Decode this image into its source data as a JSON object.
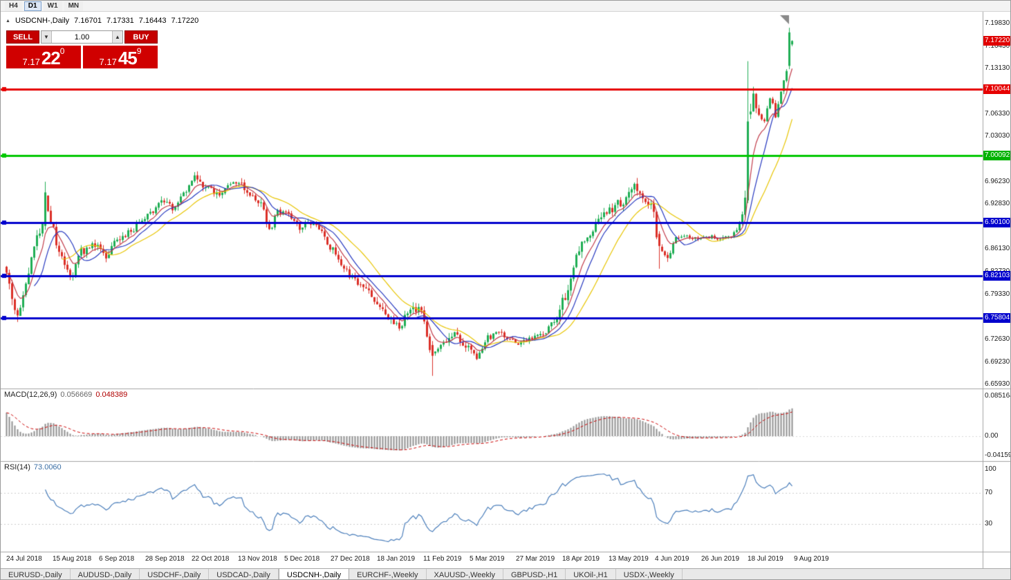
{
  "toolbar": {
    "timeframes": [
      {
        "label": "H4",
        "active": false
      },
      {
        "label": "D1",
        "active": true
      },
      {
        "label": "W1",
        "active": false
      },
      {
        "label": "MN",
        "active": false
      }
    ]
  },
  "chart_header": {
    "collapse_icon": "▲",
    "symbol": "USDCNH-,Daily",
    "open": "7.16701",
    "high": "7.17331",
    "low": "7.16443",
    "close": "7.17220"
  },
  "trade": {
    "sell_label": "SELL",
    "buy_label": "BUY",
    "volume": "1.00",
    "down_icon": "▼",
    "up_icon": "▲",
    "bid_prefix": "7.17",
    "bid_main": "22",
    "bid_pip": "0",
    "ask_prefix": "7.17",
    "ask_main": "45",
    "ask_pip": "9"
  },
  "price_scale": {
    "ticks": [
      "7.19830",
      "7.16430",
      "7.13130",
      "7.06330",
      "7.03030",
      "6.96230",
      "6.92830",
      "6.89530",
      "6.86130",
      "6.82730",
      "6.79330",
      "6.72630",
      "6.69230",
      "6.65930"
    ],
    "badges": [
      {
        "label": "7.17220",
        "color": "#e00000"
      },
      {
        "label": "7.10044",
        "color": "#e60000"
      },
      {
        "label": "7.00092",
        "color": "#00b200"
      },
      {
        "label": "6.90100",
        "color": "#0000cd"
      },
      {
        "label": "6.82103",
        "color": "#0000cd"
      },
      {
        "label": "6.75804",
        "color": "#0000cd"
      }
    ]
  },
  "hlines": [
    {
      "price": 7.10044,
      "color": "#e60000"
    },
    {
      "price": 7.00092,
      "color": "#00c800"
    },
    {
      "price": 6.901,
      "color": "#0000cd"
    },
    {
      "price": 6.82103,
      "color": "#0000cd"
    },
    {
      "price": 6.75804,
      "color": "#0000cd"
    }
  ],
  "macd_panel": {
    "label": "MACD(12,26,9)",
    "value_main": "0.056669",
    "value_signal": "0.048389",
    "scale": [
      "0.085164",
      "0.00",
      "-0.041597"
    ]
  },
  "rsi_panel": {
    "label": "RSI(14)",
    "value": "73.0060",
    "scale": [
      "100",
      "70",
      "30"
    ]
  },
  "date_axis": [
    "24 Jul 2018",
    "15 Aug 2018",
    "6 Sep 2018",
    "28 Sep 2018",
    "22 Oct 2018",
    "13 Nov 2018",
    "5 Dec 2018",
    "27 Dec 2018",
    "18 Jan 2019",
    "11 Feb 2019",
    "5 Mar 2019",
    "27 Mar 2019",
    "18 Apr 2019",
    "13 May 2019",
    "4 Jun 2019",
    "26 Jun 2019",
    "18 Jul 2019",
    "9 Aug 2019"
  ],
  "tabs": [
    {
      "label": "EURUSD-,Daily",
      "active": false
    },
    {
      "label": "AUDUSD-,Daily",
      "active": false
    },
    {
      "label": "USDCHF-,Daily",
      "active": false
    },
    {
      "label": "USDCAD-,Daily",
      "active": false
    },
    {
      "label": "USDCNH-,Daily",
      "active": true
    },
    {
      "label": "EURCHF-,Weekly",
      "active": false
    },
    {
      "label": "XAUUSD-,Weekly",
      "active": false
    },
    {
      "label": "GBPUSD-,H1",
      "active": false
    },
    {
      "label": "UKOil-,H1",
      "active": false
    },
    {
      "label": "USDX-,Weekly",
      "active": false
    }
  ],
  "colors": {
    "candle_up": "#1fae54",
    "candle_down": "#db2f27",
    "macd_hist": "#8f8f8f",
    "macd_signal": "#cc0000",
    "rsi_line": "#4a7ebb"
  },
  "chart_data": {
    "type": "candlestick",
    "symbol": "USDCNH",
    "timeframe": "Daily",
    "visible_range": {
      "price_min": 6.6593,
      "price_max": 7.1983
    },
    "last_candle": {
      "open": 7.16701,
      "high": 7.17331,
      "low": 7.16443,
      "close": 7.1722
    },
    "current_bid": 7.1722,
    "current_ask": 7.17459,
    "n_candles": 285,
    "price_anchors": [
      [
        0,
        6.83
      ],
      [
        2,
        6.79
      ],
      [
        4,
        6.762
      ],
      [
        7,
        6.812
      ],
      [
        10,
        6.868
      ],
      [
        13,
        6.896
      ],
      [
        14,
        6.946
      ],
      [
        16,
        6.898
      ],
      [
        20,
        6.846
      ],
      [
        23,
        6.818
      ],
      [
        27,
        6.858
      ],
      [
        32,
        6.868
      ],
      [
        36,
        6.848
      ],
      [
        40,
        6.875
      ],
      [
        44,
        6.885
      ],
      [
        48,
        6.9
      ],
      [
        52,
        6.915
      ],
      [
        56,
        6.932
      ],
      [
        60,
        6.924
      ],
      [
        64,
        6.944
      ],
      [
        68,
        6.972
      ],
      [
        72,
        6.955
      ],
      [
        76,
        6.944
      ],
      [
        80,
        6.954
      ],
      [
        84,
        6.958
      ],
      [
        88,
        6.944
      ],
      [
        92,
        6.93
      ],
      [
        95,
        6.888
      ],
      [
        98,
        6.918
      ],
      [
        102,
        6.912
      ],
      [
        106,
        6.895
      ],
      [
        110,
        6.903
      ],
      [
        114,
        6.884
      ],
      [
        118,
        6.86
      ],
      [
        122,
        6.832
      ],
      [
        126,
        6.815
      ],
      [
        130,
        6.8
      ],
      [
        134,
        6.778
      ],
      [
        138,
        6.76
      ],
      [
        142,
        6.748
      ],
      [
        146,
        6.775
      ],
      [
        150,
        6.768
      ],
      [
        154,
        6.702
      ],
      [
        158,
        6.722
      ],
      [
        162,
        6.736
      ],
      [
        166,
        6.716
      ],
      [
        170,
        6.7
      ],
      [
        174,
        6.73
      ],
      [
        178,
        6.736
      ],
      [
        182,
        6.73
      ],
      [
        186,
        6.72
      ],
      [
        190,
        6.73
      ],
      [
        194,
        6.736
      ],
      [
        198,
        6.752
      ],
      [
        202,
        6.792
      ],
      [
        206,
        6.85
      ],
      [
        210,
        6.88
      ],
      [
        214,
        6.905
      ],
      [
        218,
        6.92
      ],
      [
        222,
        6.93
      ],
      [
        227,
        6.952
      ],
      [
        230,
        6.936
      ],
      [
        233,
        6.928
      ],
      [
        236,
        6.866
      ],
      [
        239,
        6.852
      ],
      [
        242,
        6.88
      ],
      [
        246,
        6.88
      ],
      [
        250,
        6.876
      ],
      [
        254,
        6.88
      ],
      [
        258,
        6.876
      ],
      [
        262,
        6.882
      ],
      [
        265,
        6.896
      ],
      [
        267,
        6.932
      ],
      [
        268,
        7.052
      ],
      [
        270,
        7.088
      ],
      [
        272,
        7.06
      ],
      [
        274,
        7.052
      ],
      [
        276,
        7.088
      ],
      [
        278,
        7.062
      ],
      [
        280,
        7.092
      ],
      [
        282,
        7.13
      ],
      [
        284,
        7.172
      ]
    ],
    "volatility_anchors": [
      [
        0,
        1.5
      ],
      [
        10,
        1.3
      ],
      [
        20,
        1.1
      ],
      [
        40,
        0.9
      ],
      [
        70,
        0.9
      ],
      [
        95,
        1.0
      ],
      [
        120,
        0.9
      ],
      [
        140,
        1.1
      ],
      [
        155,
        1.2
      ],
      [
        175,
        0.8
      ],
      [
        195,
        0.7
      ],
      [
        203,
        1.5
      ],
      [
        215,
        1.1
      ],
      [
        235,
        1.3
      ],
      [
        243,
        0.5
      ],
      [
        263,
        0.5
      ],
      [
        266,
        1.2
      ],
      [
        268,
        2.0
      ],
      [
        272,
        1.1
      ],
      [
        280,
        0.9
      ],
      [
        284,
        0.7
      ]
    ],
    "forced_candles": [
      {
        "i": 14,
        "o": 6.896,
        "h": 6.962,
        "l": 6.89,
        "c": 6.946
      },
      {
        "i": 154,
        "o": 6.718,
        "h": 6.724,
        "l": 6.672,
        "c": 6.702
      },
      {
        "i": 236,
        "o": 6.884,
        "h": 6.888,
        "l": 6.832,
        "c": 6.866
      },
      {
        "i": 268,
        "o": 6.934,
        "h": 7.142,
        "l": 6.93,
        "c": 7.052
      },
      {
        "i": 283,
        "o": 7.135,
        "h": 7.192,
        "l": 7.13,
        "c": 7.185
      },
      {
        "i": 284,
        "o": 7.16701,
        "h": 7.17331,
        "l": 7.16443,
        "c": 7.1722
      }
    ],
    "moving_averages": [
      {
        "period": 21,
        "type": "sma",
        "color": "#e8c500"
      },
      {
        "period": 11,
        "type": "sma",
        "color": "#2638c0"
      },
      {
        "period": 7,
        "type": "ema",
        "color": "#c23b49"
      }
    ],
    "horizontal_levels": [
      7.10044,
      7.00092,
      6.901,
      6.82103,
      6.75804
    ],
    "macd": {
      "fast": 12,
      "slow": 26,
      "signal": 9,
      "current_main": 0.056669,
      "current_signal": 0.048389,
      "scale_max": 0.085164,
      "scale_min": -0.041597
    },
    "rsi": {
      "period": 14,
      "current": 73.006,
      "levels": [
        70,
        30
      ]
    }
  }
}
